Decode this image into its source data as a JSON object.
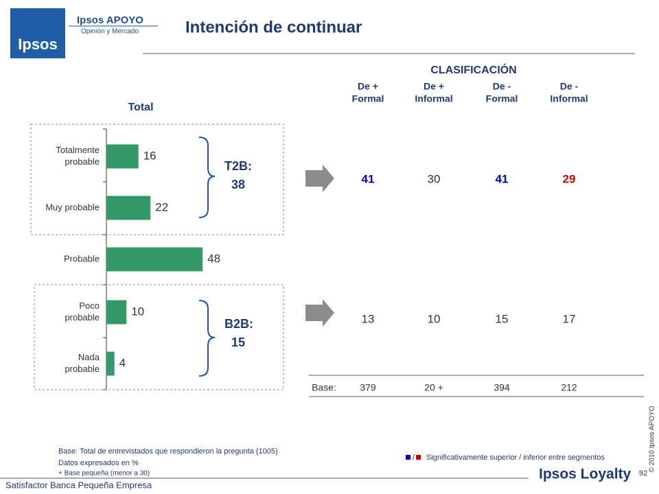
{
  "logo": {
    "brand": "Ipsos APOYO",
    "tagline": "Opinión y Mercado",
    "mark": "Ipsos"
  },
  "title": "Intención de continuar",
  "chart_data": {
    "type": "bar",
    "orientation": "horizontal",
    "title": "Total",
    "categories": [
      [
        "Totalmente",
        "probable"
      ],
      [
        "Muy probable"
      ],
      [
        "Probable"
      ],
      [
        "Poco",
        "probable"
      ],
      [
        "Nada",
        "probable"
      ]
    ],
    "values": [
      16,
      22,
      48,
      10,
      4
    ],
    "color": "#339966",
    "groups": [
      {
        "label": "T2B:",
        "value": 38
      },
      {
        "label": "B2B:",
        "value": 15
      }
    ]
  },
  "table": {
    "title": "CLASIFICACIÓN",
    "columns": [
      [
        "De +",
        "Formal"
      ],
      [
        "De +",
        "Informal"
      ],
      [
        "De -",
        "Formal"
      ],
      [
        "De  -",
        "Informal"
      ]
    ],
    "rows": [
      {
        "values": [
          41,
          30,
          41,
          29
        ],
        "colors": [
          "#0000cc",
          "#333333",
          "#0000cc",
          "#cc0000"
        ]
      },
      {
        "values": [
          13,
          10,
          15,
          17
        ],
        "colors": [
          "#333333",
          "#333333",
          "#333333",
          "#333333"
        ]
      }
    ],
    "base": {
      "label": "Base:",
      "values": [
        "379",
        "20 +",
        "394",
        "212"
      ]
    }
  },
  "notes": [
    "Base: Total de entrevistados que respondieron la pregunta (1005)",
    "Datos expresados en %",
    "+ Base pequeña (menor a 30)"
  ],
  "legend": {
    "separator": "/",
    "text": "Significativamente superior / inferior entre segmentos"
  },
  "copyright": "© 2010 Ipsos APOYO",
  "page_number": "92",
  "footer": "Satisfactor Banca Pequeña Empresa",
  "footer_brand": "Ipsos Loyalty"
}
